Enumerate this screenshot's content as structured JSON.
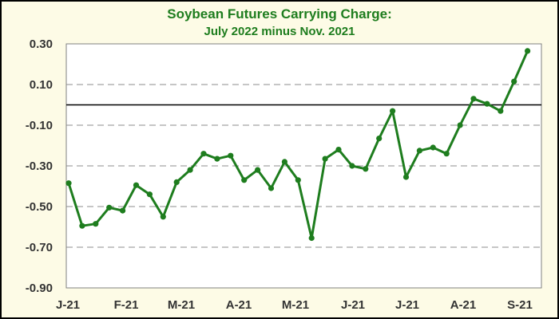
{
  "chart_data": {
    "type": "line",
    "title": "Soybean Futures Carrying Charge:",
    "subtitle": "July 2022 minus Nov. 2021",
    "xlabel": "",
    "ylabel": "",
    "x_tick_labels": [
      "J-21",
      "F-21",
      "M-21",
      "A-21",
      "M-21",
      "J-21",
      "J-21",
      "A-21",
      "S-21"
    ],
    "y_tick_labels": [
      "0.30",
      "0.10",
      "-0.10",
      "-0.30",
      "-0.50",
      "-0.70",
      "-0.90"
    ],
    "ylim": [
      -0.9,
      0.3
    ],
    "y_ticks": [
      0.3,
      0.1,
      -0.1,
      -0.3,
      -0.5,
      -0.7,
      -0.9
    ],
    "grid": "horizontal dashed",
    "legend": "none",
    "series": [
      {
        "values": [
          -0.385,
          -0.595,
          -0.585,
          -0.505,
          -0.52,
          -0.395,
          -0.44,
          -0.55,
          -0.38,
          -0.32,
          -0.24,
          -0.265,
          -0.25,
          -0.37,
          -0.32,
          -0.41,
          -0.28,
          -0.37,
          -0.655,
          -0.265,
          -0.22,
          -0.3,
          -0.315,
          -0.165,
          -0.03,
          -0.355,
          -0.225,
          -0.21,
          -0.24,
          -0.1,
          0.03,
          0.005,
          -0.03,
          0.115,
          0.265
        ]
      }
    ],
    "colors": {
      "line": "#1e7d1e",
      "background": "#fdfbe6",
      "grid": "#8c8c8c",
      "title": "#1e7d1e"
    }
  }
}
